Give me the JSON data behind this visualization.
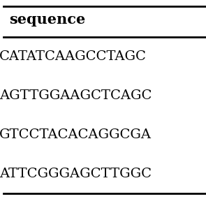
{
  "header": "sequence",
  "rows": [
    "CATATCAAGCCTAGC",
    "AGTTGGAAGCTCAGC",
    "GTCCTACACAGGCGA",
    "ATTCGGGAGCTTGGC"
  ],
  "bg_color": "#ffffff",
  "text_color": "#000000",
  "header_fontsize": 15,
  "row_fontsize": 14,
  "border_color": "#000000",
  "border_linewidth": 2.0
}
